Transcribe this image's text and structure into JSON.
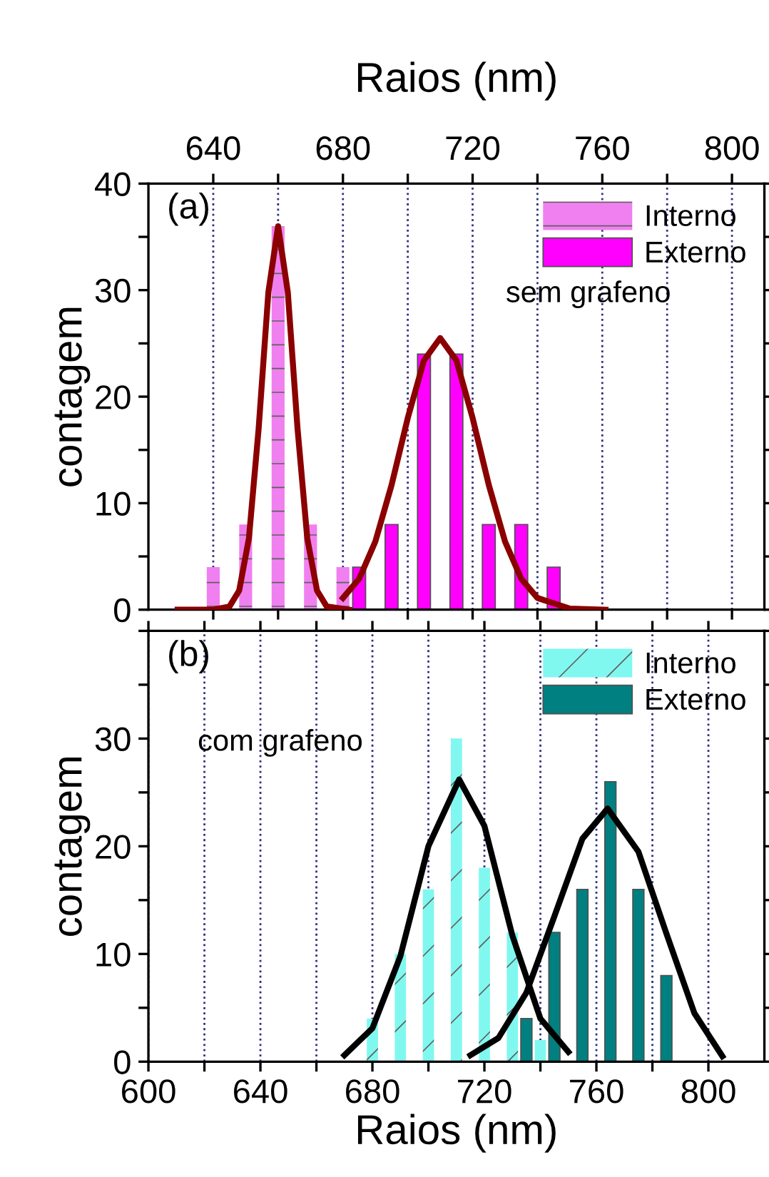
{
  "chart_data": [
    {
      "type": "bar",
      "xlabel": "Raios (nm)",
      "ylabel": "contagem",
      "xlim": [
        620,
        810
      ],
      "xticks": [
        640,
        {
          "value": 660,
          "label": null
        },
        680,
        {
          "value": 700,
          "label": null
        },
        720,
        {
          "value": 740,
          "label": null
        },
        760,
        {
          "value": 780,
          "label": null
        },
        800
      ],
      "ylim": [
        0,
        40
      ],
      "yticks": [
        0,
        {
          "value": 5,
          "label": null
        },
        10,
        {
          "value": 15,
          "label": null
        },
        20,
        {
          "value": 25,
          "label": null
        },
        30,
        {
          "value": 35,
          "label": null
        },
        40
      ],
      "grid": "x",
      "legend": "top right",
      "annotations": [
        "(a)",
        "sem grafeno"
      ],
      "series": [
        {
          "name": "Interno",
          "color": "#f080f0",
          "x": [
            640,
            650,
            660,
            670,
            680
          ],
          "values": [
            4,
            8,
            36,
            8,
            4
          ]
        },
        {
          "name": "Externo",
          "color": "#ff00ff",
          "x": [
            685,
            695,
            705,
            715,
            725,
            735,
            745
          ],
          "values": [
            4,
            8,
            24,
            24,
            8,
            8,
            4
          ]
        },
        {
          "type": "line",
          "color": "#8b0000",
          "x": [
            629,
            640,
            645,
            648,
            651,
            654,
            657,
            660,
            663,
            666,
            669,
            672,
            675,
            682
          ],
          "values": [
            0,
            0,
            0.3,
            1.8,
            6.7,
            17,
            29.8,
            36,
            29.8,
            17,
            6.7,
            1.8,
            0.3,
            0
          ]
        },
        {
          "type": "line",
          "color": "#8b0000",
          "x": [
            680,
            685,
            690,
            695,
            700,
            705,
            710,
            715,
            720,
            725,
            730,
            735,
            740,
            750,
            761
          ],
          "values": [
            1.1,
            2.9,
            6.4,
            11.7,
            18,
            23.4,
            25.5,
            23.4,
            18,
            11.7,
            6.4,
            2.9,
            1.1,
            0.1,
            0
          ]
        }
      ]
    },
    {
      "type": "bar",
      "xlabel": "Raios (nm)",
      "ylabel": "contagem",
      "xlim": [
        600,
        820
      ],
      "xticks": [
        600,
        {
          "value": 620,
          "label": null
        },
        640,
        {
          "value": 660,
          "label": null
        },
        680,
        {
          "value": 700,
          "label": null
        },
        720,
        {
          "value": 740,
          "label": null
        },
        760,
        {
          "value": 780,
          "label": null
        },
        800
      ],
      "ylim": [
        0,
        40
      ],
      "yticks": [
        0,
        {
          "value": 5,
          "label": null
        },
        10,
        {
          "value": 15,
          "label": null
        },
        20,
        {
          "value": 25,
          "label": null
        },
        30,
        {
          "value": 35,
          "label": null
        },
        {
          "value": 40,
          "label": null
        }
      ],
      "grid": "x",
      "legend": "top right",
      "annotations": [
        "(b)",
        "com grafeno"
      ],
      "series": [
        {
          "name": "Interno",
          "color": "#80f8f0",
          "x": [
            680,
            690,
            700,
            710,
            720,
            730,
            740
          ],
          "values": [
            4,
            10,
            16,
            30,
            18,
            12,
            2
          ]
        },
        {
          "name": "Externo",
          "color": "#008080",
          "x": [
            735,
            745,
            755,
            765,
            775,
            785
          ],
          "values": [
            4,
            12,
            16,
            26,
            16,
            8
          ]
        },
        {
          "type": "line",
          "color": "#000000",
          "x": [
            670,
            680,
            690,
            700,
            711,
            720,
            730,
            740,
            750
          ],
          "values": [
            0.6,
            3.1,
            9.8,
            20,
            26.2,
            21.9,
            11.7,
            4,
            0.9
          ]
        },
        {
          "type": "line",
          "color": "#000000",
          "x": [
            715,
            725,
            735,
            745,
            755,
            764,
            775,
            785,
            795,
            805
          ],
          "values": [
            0.6,
            2.2,
            6.4,
            13.5,
            20.7,
            23.5,
            19.5,
            11.9,
            4.5,
            0.5
          ]
        }
      ]
    }
  ]
}
